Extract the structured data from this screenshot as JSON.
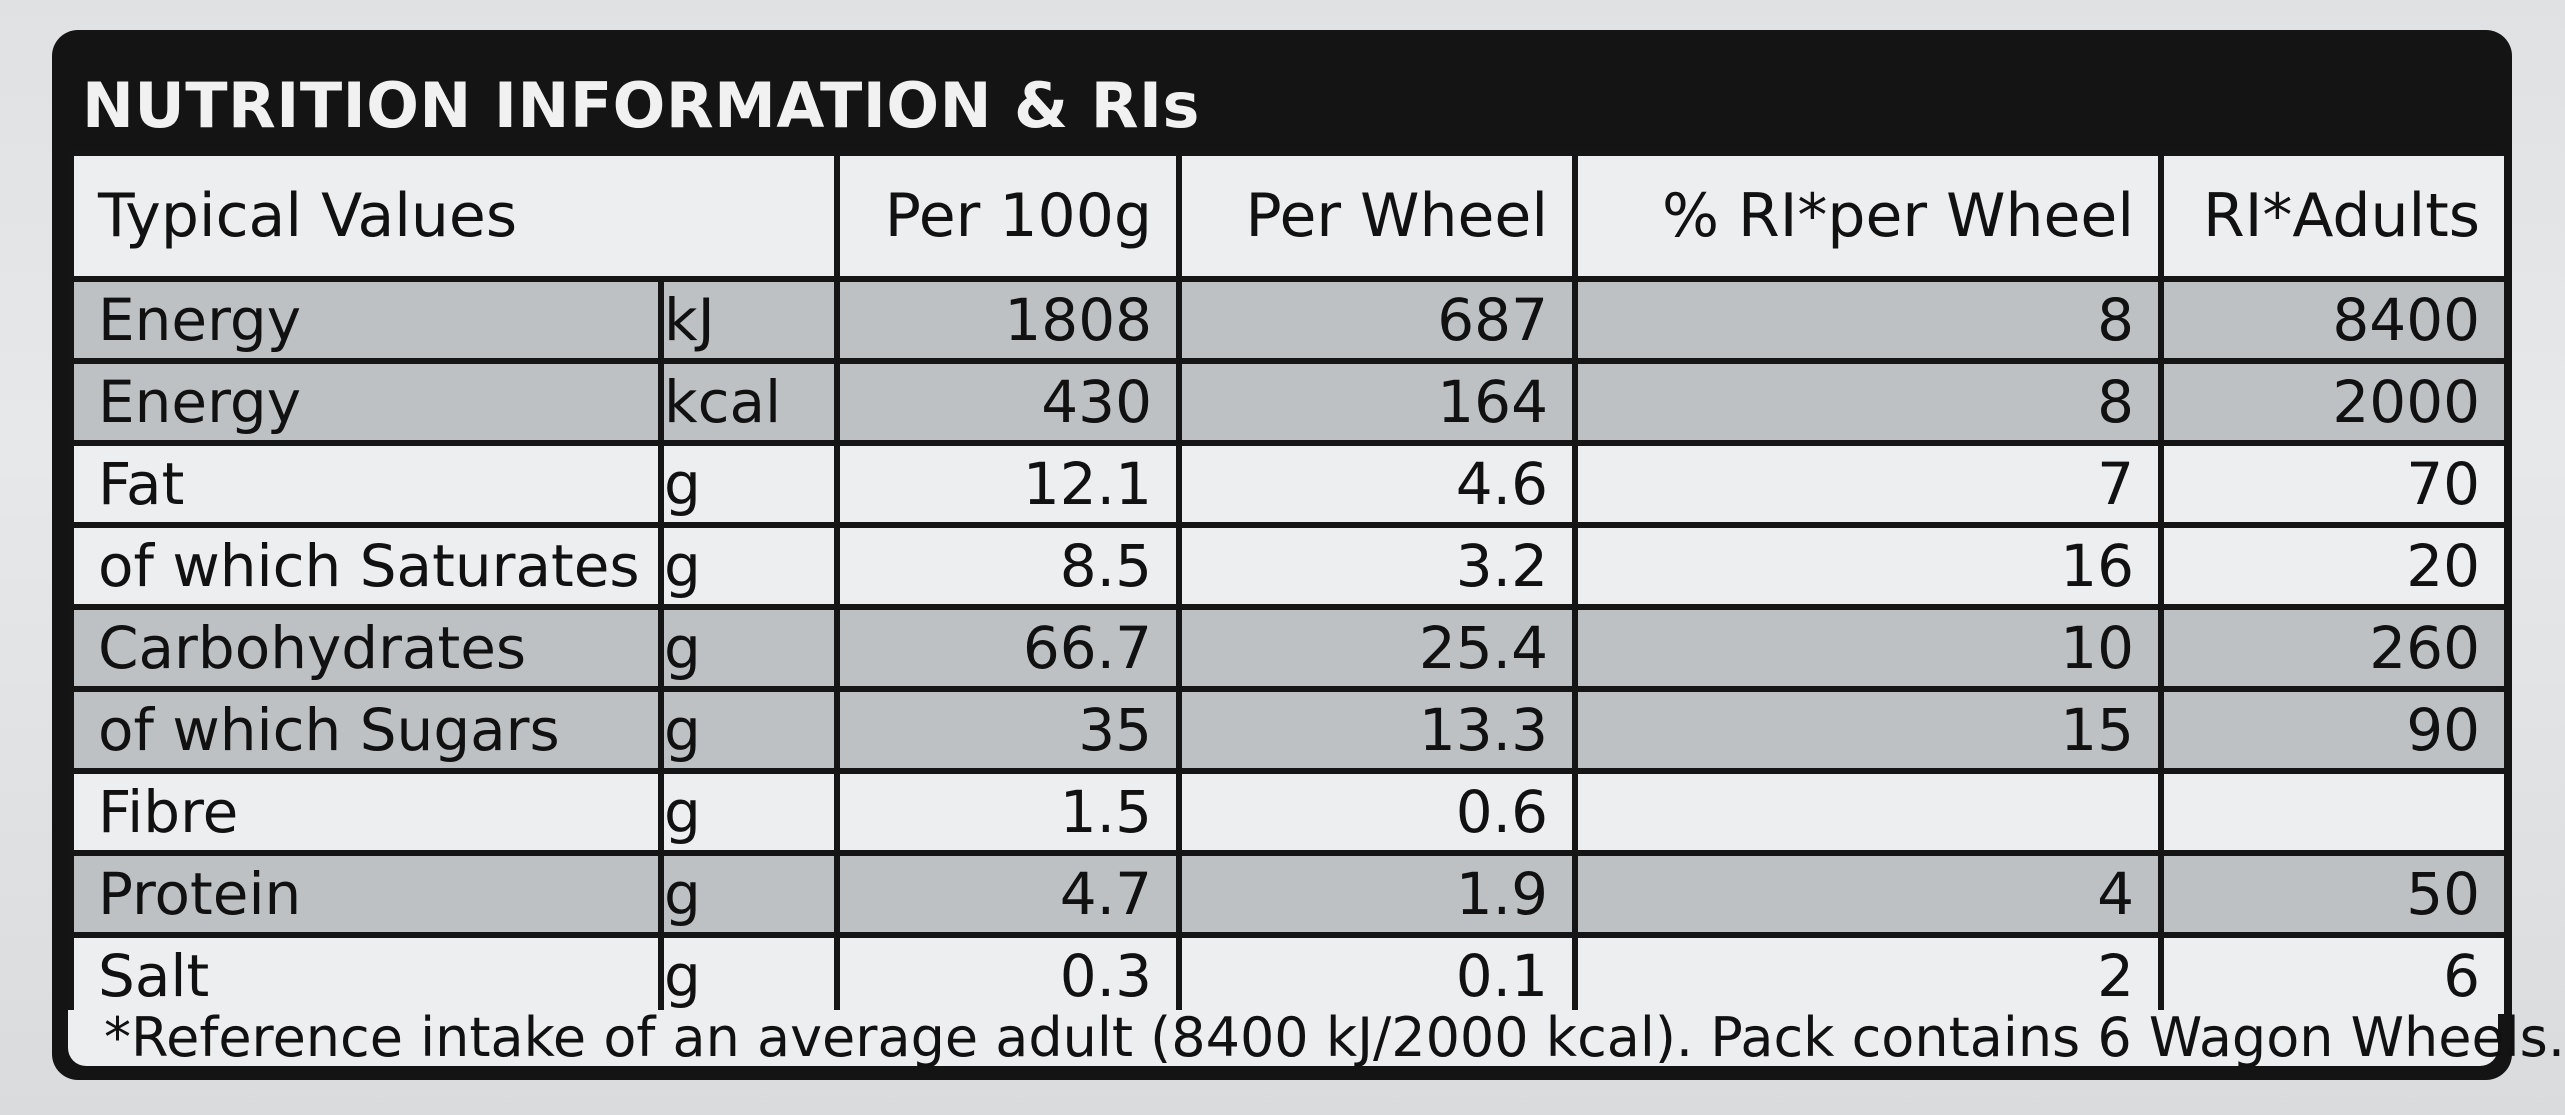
{
  "title": "NUTRITION INFORMATION & RIs",
  "columns": {
    "typical_values": "Typical Values",
    "per_100g": "Per 100g",
    "per_wheel": "Per Wheel",
    "ri_per_wheel": "% RI*per Wheel",
    "ri_adults": "RI*Adults"
  },
  "rows": [
    {
      "nutrient": "Energy",
      "unit": "kJ",
      "per_100g": "1808",
      "per_wheel": "687",
      "ri_pct": "8",
      "ri_adults": "8400"
    },
    {
      "nutrient": "Energy",
      "unit": "kcal",
      "per_100g": "430",
      "per_wheel": "164",
      "ri_pct": "8",
      "ri_adults": "2000"
    },
    {
      "nutrient": "Fat",
      "unit": "g",
      "per_100g": "12.1",
      "per_wheel": "4.6",
      "ri_pct": "7",
      "ri_adults": "70"
    },
    {
      "nutrient": "of which Saturates",
      "unit": "g",
      "per_100g": "8.5",
      "per_wheel": "3.2",
      "ri_pct": "16",
      "ri_adults": "20"
    },
    {
      "nutrient": "Carbohydrates",
      "unit": "g",
      "per_100g": "66.7",
      "per_wheel": "25.4",
      "ri_pct": "10",
      "ri_adults": "260"
    },
    {
      "nutrient": "of which Sugars",
      "unit": "g",
      "per_100g": "35",
      "per_wheel": "13.3",
      "ri_pct": "15",
      "ri_adults": "90"
    },
    {
      "nutrient": "Fibre",
      "unit": "g",
      "per_100g": "1.5",
      "per_wheel": "0.6",
      "ri_pct": "",
      "ri_adults": ""
    },
    {
      "nutrient": "Protein",
      "unit": "g",
      "per_100g": "4.7",
      "per_wheel": "1.9",
      "ri_pct": "4",
      "ri_adults": "50"
    },
    {
      "nutrient": "Salt",
      "unit": "g",
      "per_100g": "0.3",
      "per_wheel": "0.1",
      "ri_pct": "2",
      "ri_adults": "6"
    }
  ],
  "footnote": "*Reference intake of an average adult (8400 kJ/2000 kcal). Pack contains 6 Wagon Wheels."
}
